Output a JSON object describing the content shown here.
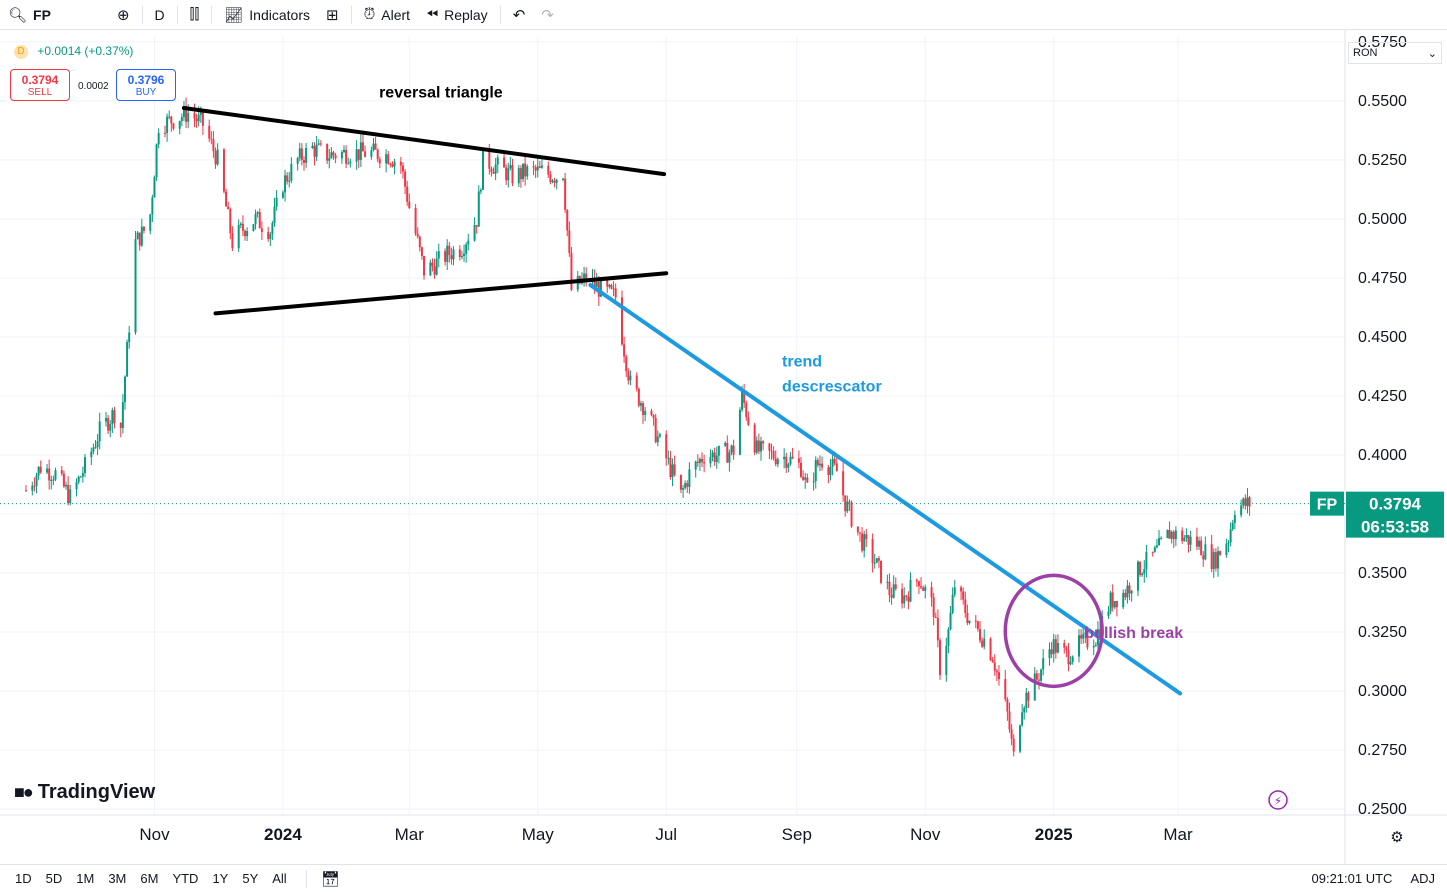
{
  "toolbar": {
    "symbol": "FP",
    "interval": "D",
    "indicators_label": "Indicators",
    "alert_label": "Alert",
    "replay_label": "Replay"
  },
  "legend": {
    "interval_badge": "D",
    "change": "+0.0014 (+0.37%)",
    "sell_price": "0.3794",
    "sell_label": "SELL",
    "spread": "0.0002",
    "buy_price": "0.3796",
    "buy_label": "BUY"
  },
  "currency": "RON",
  "brand": "TradingView",
  "bottom": {
    "ranges": [
      "1D",
      "5D",
      "1M",
      "3M",
      "6M",
      "YTD",
      "1Y",
      "5Y",
      "All"
    ],
    "time": "09:21:01 UTC",
    "adj": "ADJ"
  },
  "colors": {
    "up": "#089981",
    "down": "#f23645",
    "trendline": "#1e9be0",
    "circle": "#9c3fa6",
    "triangle": "#000000",
    "price_badge": "#089981"
  },
  "chart_data": {
    "type": "candlestick",
    "ylim": [
      0.25,
      0.5775
    ],
    "y_ticks": [
      "0.5750",
      "0.5500",
      "0.5250",
      "0.5000",
      "0.4750",
      "0.4500",
      "0.4250",
      "0.4000",
      "0.3750",
      "0.3500",
      "0.3250",
      "0.3000",
      "0.2750",
      "0.2500"
    ],
    "x_ticks": [
      "Nov",
      "2024",
      "Mar",
      "May",
      "Jul",
      "Sep",
      "Nov",
      "2025",
      "Mar"
    ],
    "x_tick_dates": [
      "2023-11-01",
      "2024-01-01",
      "2024-03-01",
      "2024-05-01",
      "2024-07-01",
      "2024-09-01",
      "2024-11-01",
      "2025-01-01",
      "2025-03-01"
    ],
    "x_range": [
      "2023-09-01",
      "2025-05-01"
    ],
    "last_price": {
      "symbol": "FP",
      "value": 0.3794,
      "label": "0.3794",
      "countdown": "06:53:58"
    },
    "close_path": [
      [
        "2023-09-01",
        0.385
      ],
      [
        "2023-09-08",
        0.395
      ],
      [
        "2023-09-15",
        0.392
      ],
      [
        "2023-09-22",
        0.382
      ],
      [
        "2023-09-29",
        0.395
      ],
      [
        "2023-10-06",
        0.41
      ],
      [
        "2023-10-13",
        0.418
      ],
      [
        "2023-10-16",
        0.412
      ],
      [
        "2023-10-20",
        0.455
      ],
      [
        "2023-10-23",
        0.49
      ],
      [
        "2023-10-27",
        0.495
      ],
      [
        "2023-10-30",
        0.502
      ],
      [
        "2023-11-03",
        0.54
      ],
      [
        "2023-11-10",
        0.542
      ],
      [
        "2023-11-17",
        0.545
      ],
      [
        "2023-11-24",
        0.54
      ],
      [
        "2023-12-01",
        0.525
      ],
      [
        "2023-12-05",
        0.505
      ],
      [
        "2023-12-08",
        0.49
      ],
      [
        "2023-12-12",
        0.495
      ],
      [
        "2023-12-19",
        0.5
      ],
      [
        "2023-12-26",
        0.495
      ],
      [
        "2024-01-01",
        0.515
      ],
      [
        "2024-01-08",
        0.525
      ],
      [
        "2024-01-15",
        0.53
      ],
      [
        "2024-01-22",
        0.527
      ],
      [
        "2024-02-01",
        0.528
      ],
      [
        "2024-02-12",
        0.528
      ],
      [
        "2024-02-20",
        0.527
      ],
      [
        "2024-02-26",
        0.523
      ],
      [
        "2024-03-01",
        0.505
      ],
      [
        "2024-03-05",
        0.49
      ],
      [
        "2024-03-08",
        0.478
      ],
      [
        "2024-03-12",
        0.48
      ],
      [
        "2024-03-19",
        0.485
      ],
      [
        "2024-03-26",
        0.488
      ],
      [
        "2024-04-02",
        0.5
      ],
      [
        "2024-04-05",
        0.525
      ],
      [
        "2024-04-12",
        0.522
      ],
      [
        "2024-04-19",
        0.518
      ],
      [
        "2024-04-26",
        0.52
      ],
      [
        "2024-05-03",
        0.52
      ],
      [
        "2024-05-10",
        0.518
      ],
      [
        "2024-05-13",
        0.52
      ],
      [
        "2024-05-17",
        0.47
      ],
      [
        "2024-05-24",
        0.475
      ],
      [
        "2024-05-31",
        0.47
      ],
      [
        "2024-06-07",
        0.467
      ],
      [
        "2024-06-11",
        0.445
      ],
      [
        "2024-06-14",
        0.43
      ],
      [
        "2024-06-21",
        0.42
      ],
      [
        "2024-06-28",
        0.405
      ],
      [
        "2024-07-05",
        0.39
      ],
      [
        "2024-07-08",
        0.383
      ],
      [
        "2024-07-12",
        0.392
      ],
      [
        "2024-07-19",
        0.4
      ],
      [
        "2024-07-26",
        0.4
      ],
      [
        "2024-08-02",
        0.402
      ],
      [
        "2024-08-06",
        0.425
      ],
      [
        "2024-08-09",
        0.415
      ],
      [
        "2024-08-13",
        0.402
      ],
      [
        "2024-08-20",
        0.4
      ],
      [
        "2024-08-27",
        0.399
      ],
      [
        "2024-09-03",
        0.395
      ],
      [
        "2024-09-06",
        0.385
      ],
      [
        "2024-09-10",
        0.395
      ],
      [
        "2024-09-13",
        0.398
      ],
      [
        "2024-09-20",
        0.393
      ],
      [
        "2024-09-24",
        0.38
      ],
      [
        "2024-10-01",
        0.365
      ],
      [
        "2024-10-08",
        0.355
      ],
      [
        "2024-10-15",
        0.342
      ],
      [
        "2024-10-22",
        0.34
      ],
      [
        "2024-10-29",
        0.348
      ],
      [
        "2024-11-05",
        0.335
      ],
      [
        "2024-11-08",
        0.31
      ],
      [
        "2024-11-12",
        0.325
      ],
      [
        "2024-11-15",
        0.345
      ],
      [
        "2024-11-22",
        0.33
      ],
      [
        "2024-11-29",
        0.322
      ],
      [
        "2024-12-03",
        0.315
      ],
      [
        "2024-12-10",
        0.29
      ],
      [
        "2024-12-13",
        0.272
      ],
      [
        "2024-12-17",
        0.295
      ],
      [
        "2024-12-24",
        0.305
      ],
      [
        "2024-12-31",
        0.32
      ],
      [
        "2025-01-07",
        0.315
      ],
      [
        "2025-01-14",
        0.32
      ],
      [
        "2025-01-21",
        0.323
      ],
      [
        "2025-01-28",
        0.338
      ],
      [
        "2025-02-04",
        0.342
      ],
      [
        "2025-02-11",
        0.352
      ],
      [
        "2025-02-18",
        0.358
      ],
      [
        "2025-02-25",
        0.367
      ],
      [
        "2025-03-04",
        0.365
      ],
      [
        "2025-03-11",
        0.362
      ],
      [
        "2025-03-18",
        0.355
      ],
      [
        "2025-03-25",
        0.365
      ],
      [
        "2025-03-28",
        0.378
      ],
      [
        "2025-04-04",
        0.3794
      ]
    ],
    "annotations": [
      {
        "type": "line",
        "name": "triangle-top",
        "from": [
          "2023-11-15",
          0.547
        ],
        "to": [
          "2024-06-30",
          0.519
        ]
      },
      {
        "type": "line",
        "name": "triangle-bottom",
        "from": [
          "2023-11-30",
          0.46
        ],
        "to": [
          "2024-07-01",
          0.477
        ]
      },
      {
        "type": "line",
        "name": "trend-line",
        "from": [
          "2024-05-26",
          0.472
        ],
        "to": [
          "2025-03-02",
          0.299
        ]
      },
      {
        "type": "circle",
        "name": "breakout-circle",
        "center": [
          "2025-01-01",
          0.3255
        ],
        "radius_days": 23,
        "radius_y": 0.0235
      },
      {
        "type": "text",
        "name": "triangle-label",
        "text": "reversal triangle",
        "at": [
          "2024-03-16",
          0.5515
        ],
        "color": "#000000"
      },
      {
        "type": "text",
        "name": "trend-label-1",
        "text": "trend",
        "at": [
          "2024-08-25",
          0.4375
        ],
        "color": "#1e9be0"
      },
      {
        "type": "text",
        "name": "trend-label-2",
        "text": "descrescator",
        "at": [
          "2024-08-25",
          0.427
        ],
        "color": "#1e9be0"
      },
      {
        "type": "text",
        "name": "bullish-label",
        "text": "bullish break",
        "at": [
          "2025-02-08",
          0.3225
        ],
        "color": "#9c3fa6"
      }
    ]
  }
}
